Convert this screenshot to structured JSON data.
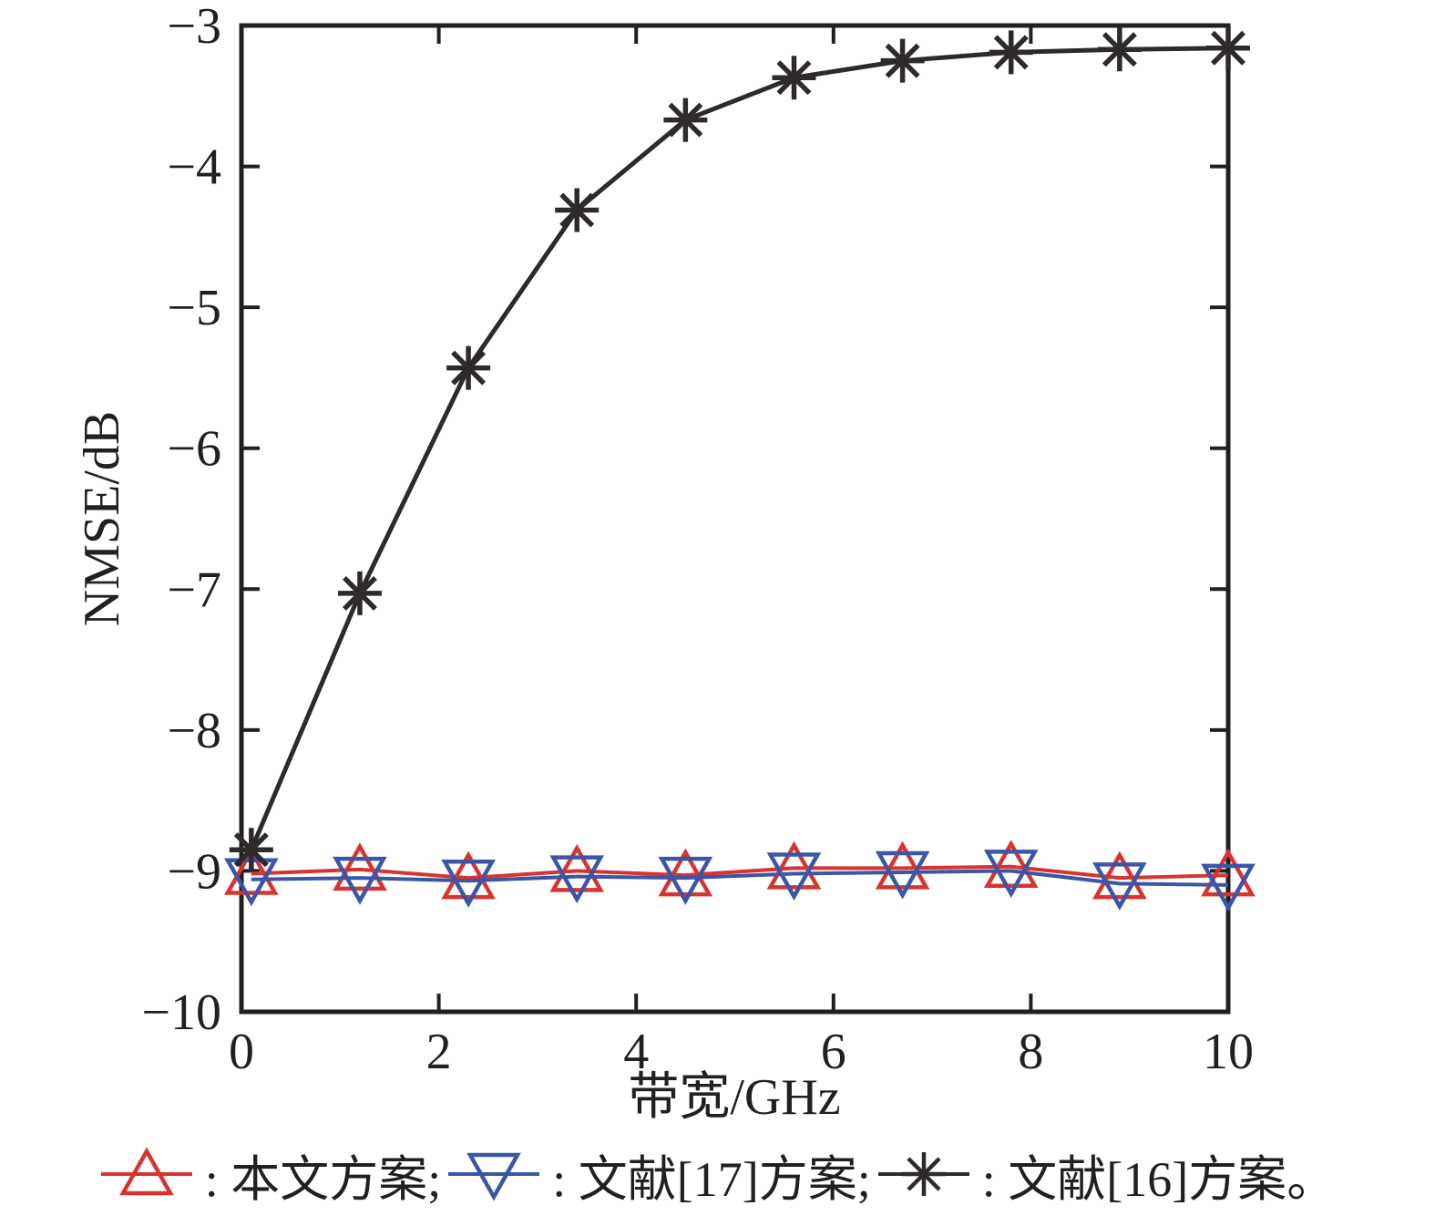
{
  "figure": {
    "background": "#ffffff",
    "axis_color": "#231f20"
  },
  "chart_data": {
    "type": "line",
    "title": "",
    "xlabel": "带宽/GHz",
    "ylabel": "NMSE/dB",
    "xlim": [
      0,
      10
    ],
    "ylim": [
      -10,
      -3
    ],
    "xticks": [
      0,
      2,
      4,
      6,
      8,
      10
    ],
    "yticks": [
      -10,
      -9,
      -8,
      -7,
      -6,
      -5,
      -4,
      -3
    ],
    "grid": false,
    "legend_position": "bottom",
    "x": [
      0.1,
      1.2,
      2.3,
      3.4,
      4.5,
      5.6,
      6.7,
      7.8,
      8.9,
      10
    ],
    "series": [
      {
        "name": "本文方案",
        "marker": "triangle-up",
        "color": "#d7342f",
        "line_width": 4,
        "marker_size": 52,
        "values": [
          -9.02,
          -8.99,
          -9.05,
          -9.0,
          -9.03,
          -8.98,
          -8.98,
          -8.97,
          -9.05,
          -9.03
        ]
      },
      {
        "name": "文献[17]方案",
        "marker": "triangle-down",
        "color": "#3b56a7",
        "line_width": 4,
        "marker_size": 52,
        "values": [
          -9.06,
          -9.05,
          -9.07,
          -9.04,
          -9.05,
          -9.02,
          -9.01,
          -9.0,
          -9.09,
          -9.1
        ]
      },
      {
        "name": "文献[16]方案",
        "marker": "asterisk",
        "color": "#2e2a2c",
        "line_width": 5,
        "marker_size": 48,
        "values": [
          -8.85,
          -7.03,
          -5.43,
          -4.31,
          -3.67,
          -3.37,
          -3.25,
          -3.19,
          -3.17,
          -3.16
        ]
      }
    ],
    "legend": {
      "items": [
        {
          "label": ": 本文方案;",
          "marker": "triangle-up",
          "color": "#d7342f"
        },
        {
          "label": ": 文献[17]方案;",
          "marker": "triangle-down",
          "color": "#3b56a7"
        },
        {
          "label": ": 文献[16]方案。",
          "marker": "asterisk",
          "color": "#2e2a2c"
        }
      ]
    }
  }
}
